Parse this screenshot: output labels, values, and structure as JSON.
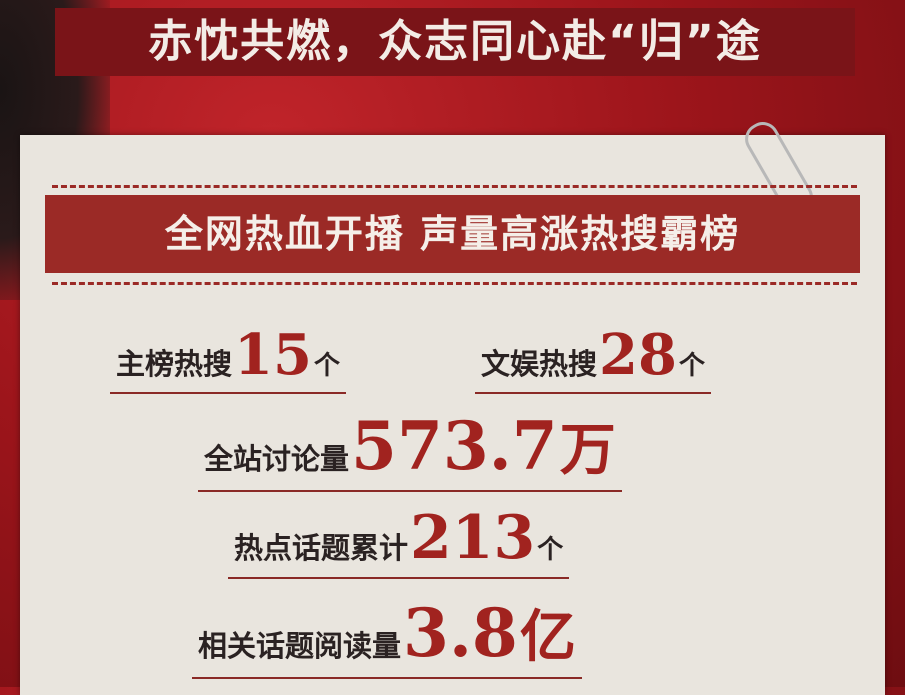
{
  "title": "赤忱共燃，众志同心赴“归”途",
  "banner": "全网热血开播 声量高涨热搜霸榜",
  "stats": [
    {
      "label": "主榜热搜",
      "value": "15",
      "unit": "个"
    },
    {
      "label": "文娱热搜",
      "value": "28",
      "unit": "个"
    },
    {
      "label": "全站讨论量",
      "value": "573.7",
      "unit": "万"
    },
    {
      "label": "热点话题累计",
      "value": "213",
      "unit": "个"
    },
    {
      "label": "相关话题阅读量",
      "value": "3.8",
      "unit": "亿"
    }
  ],
  "colors": {
    "background": "#9d151b",
    "paper": "#e9e5de",
    "banner": "#9b2a26",
    "accent": "#a1231f"
  }
}
